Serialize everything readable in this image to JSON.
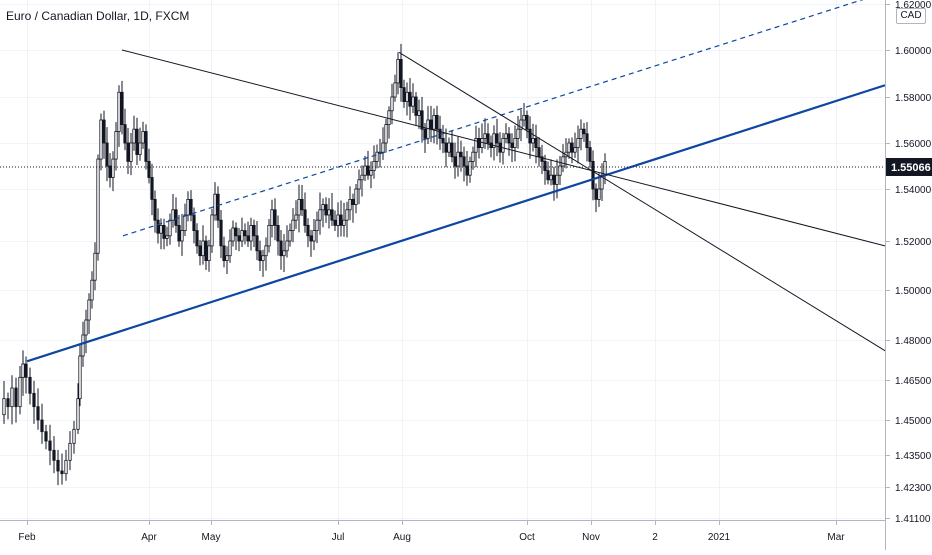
{
  "header": {
    "symbol_title": "Euro / Canadian Dollar, 1D, FXCM",
    "currency": "CAD"
  },
  "price_axis": {
    "ticks": [
      "1.62000",
      "1.60000",
      "1.58000",
      "1.56000",
      "1.54000",
      "1.52000",
      "1.50000",
      "1.48000",
      "1.46500",
      "1.45000",
      "1.43500",
      "1.42300",
      "1.41100"
    ],
    "current_price": "1.55066"
  },
  "time_axis": {
    "labels": [
      "Feb",
      "Apr",
      "May",
      "Jul",
      "Aug",
      "Oct",
      "Nov",
      "2",
      "2021",
      "Mar"
    ]
  },
  "colors": {
    "up_candle": "#ffffff",
    "down_candle": "#131722",
    "wick": "#131722",
    "trendline_blue": "#0d47a1",
    "channel_line": "#131722",
    "price_label_bg": "#131722",
    "grid": "#f0f3fa"
  },
  "chart_data": {
    "type": "candlestick",
    "symbol": "Euro / Canadian Dollar",
    "interval": "1D",
    "source": "FXCM",
    "quote_currency": "CAD",
    "y_ticks": [
      1.62,
      1.6,
      1.58,
      1.56,
      1.54,
      1.52,
      1.5,
      1.48,
      1.465,
      1.45,
      1.435,
      1.423,
      1.411
    ],
    "last_price": 1.55066,
    "x_labels": [
      "Feb",
      "Apr",
      "May",
      "Jul",
      "Aug",
      "Oct",
      "Nov",
      "2",
      "2021",
      "Mar"
    ],
    "price_path": [
      [
        0,
        1.452
      ],
      [
        4,
        1.458
      ],
      [
        8,
        1.455
      ],
      [
        12,
        1.462
      ],
      [
        16,
        1.455
      ],
      [
        20,
        1.466
      ],
      [
        23,
        1.471
      ],
      [
        26,
        1.466
      ],
      [
        30,
        1.46
      ],
      [
        34,
        1.455
      ],
      [
        38,
        1.45
      ],
      [
        42,
        1.445
      ],
      [
        46,
        1.441
      ],
      [
        50,
        1.437
      ],
      [
        54,
        1.433
      ],
      [
        58,
        1.429
      ],
      [
        62,
        1.428
      ],
      [
        66,
        1.433
      ],
      [
        70,
        1.44
      ],
      [
        74,
        1.446
      ],
      [
        78,
        1.458
      ],
      [
        80,
        1.474
      ],
      [
        83,
        1.482
      ],
      [
        86,
        1.488
      ],
      [
        89,
        1.496
      ],
      [
        92,
        1.504
      ],
      [
        95,
        1.515
      ],
      [
        98,
        1.553
      ],
      [
        101,
        1.57
      ],
      [
        104,
        1.56
      ],
      [
        107,
        1.55
      ],
      [
        110,
        1.545
      ],
      [
        113,
        1.553
      ],
      [
        116,
        1.565
      ],
      [
        119,
        1.582
      ],
      [
        122,
        1.568
      ],
      [
        125,
        1.56
      ],
      [
        128,
        1.552
      ],
      [
        131,
        1.56
      ],
      [
        134,
        1.566
      ],
      [
        137,
        1.555
      ],
      [
        140,
        1.56
      ],
      [
        143,
        1.565
      ],
      [
        146,
        1.552
      ],
      [
        149,
        1.545
      ],
      [
        152,
        1.536
      ],
      [
        155,
        1.528
      ],
      [
        158,
        1.523
      ],
      [
        161,
        1.526
      ],
      [
        164,
        1.521
      ],
      [
        167,
        1.522
      ],
      [
        170,
        1.528
      ],
      [
        173,
        1.532
      ],
      [
        176,
        1.526
      ],
      [
        179,
        1.52
      ],
      [
        182,
        1.524
      ],
      [
        185,
        1.53
      ],
      [
        188,
        1.536
      ],
      [
        191,
        1.53
      ],
      [
        194,
        1.524
      ],
      [
        197,
        1.518
      ],
      [
        200,
        1.514
      ],
      [
        203,
        1.52
      ],
      [
        206,
        1.512
      ],
      [
        209,
        1.518
      ],
      [
        212,
        1.53
      ],
      [
        215,
        1.538
      ],
      [
        218,
        1.528
      ],
      [
        221,
        1.518
      ],
      [
        224,
        1.512
      ],
      [
        227,
        1.514
      ],
      [
        230,
        1.52
      ],
      [
        233,
        1.525
      ],
      [
        236,
        1.522
      ],
      [
        239,
        1.52
      ],
      [
        242,
        1.524
      ],
      [
        245,
        1.522
      ],
      [
        248,
        1.52
      ],
      [
        251,
        1.526
      ],
      [
        254,
        1.522
      ],
      [
        257,
        1.516
      ],
      [
        260,
        1.512
      ],
      [
        263,
        1.514
      ],
      [
        266,
        1.518
      ],
      [
        269,
        1.526
      ],
      [
        272,
        1.532
      ],
      [
        275,
        1.526
      ],
      [
        278,
        1.52
      ],
      [
        281,
        1.514
      ],
      [
        284,
        1.516
      ],
      [
        287,
        1.52
      ],
      [
        290,
        1.524
      ],
      [
        293,
        1.528
      ],
      [
        296,
        1.53
      ],
      [
        299,
        1.536
      ],
      [
        302,
        1.532
      ],
      [
        305,
        1.526
      ],
      [
        308,
        1.522
      ],
      [
        311,
        1.52
      ],
      [
        314,
        1.524
      ],
      [
        317,
        1.528
      ],
      [
        320,
        1.532
      ],
      [
        323,
        1.534
      ],
      [
        326,
        1.53
      ],
      [
        329,
        1.532
      ],
      [
        332,
        1.528
      ],
      [
        335,
        1.526
      ],
      [
        338,
        1.53
      ],
      [
        341,
        1.526
      ],
      [
        344,
        1.528
      ],
      [
        347,
        1.532
      ],
      [
        350,
        1.536
      ],
      [
        353,
        1.534
      ],
      [
        356,
        1.54
      ],
      [
        359,
        1.544
      ],
      [
        362,
        1.546
      ],
      [
        365,
        1.55
      ],
      [
        368,
        1.546
      ],
      [
        371,
        1.548
      ],
      [
        374,
        1.552
      ],
      [
        377,
        1.556
      ],
      [
        380,
        1.556
      ],
      [
        383,
        1.56
      ],
      [
        386,
        1.568
      ],
      [
        389,
        1.574
      ],
      [
        392,
        1.58
      ],
      [
        395,
        1.586
      ],
      [
        398,
        1.596
      ],
      [
        401,
        1.584
      ],
      [
        404,
        1.578
      ],
      [
        407,
        1.582
      ],
      [
        410,
        1.576
      ],
      [
        413,
        1.58
      ],
      [
        416,
        1.572
      ],
      [
        419,
        1.574
      ],
      [
        422,
        1.566
      ],
      [
        425,
        1.562
      ],
      [
        428,
        1.57
      ],
      [
        431,
        1.566
      ],
      [
        434,
        1.572
      ],
      [
        437,
        1.566
      ],
      [
        440,
        1.562
      ],
      [
        443,
        1.56
      ],
      [
        446,
        1.556
      ],
      [
        449,
        1.56
      ],
      [
        452,
        1.554
      ],
      [
        455,
        1.55
      ],
      [
        458,
        1.556
      ],
      [
        461,
        1.554
      ],
      [
        464,
        1.55
      ],
      [
        467,
        1.546
      ],
      [
        470,
        1.552
      ],
      [
        473,
        1.556
      ],
      [
        476,
        1.562
      ],
      [
        479,
        1.558
      ],
      [
        482,
        1.562
      ],
      [
        485,
        1.564
      ],
      [
        488,
        1.56
      ],
      [
        491,
        1.558
      ],
      [
        494,
        1.564
      ],
      [
        497,
        1.56
      ],
      [
        500,
        1.556
      ],
      [
        503,
        1.562
      ],
      [
        506,
        1.564
      ],
      [
        509,
        1.56
      ],
      [
        512,
        1.558
      ],
      [
        515,
        1.562
      ],
      [
        518,
        1.566
      ],
      [
        521,
        1.57
      ],
      [
        524,
        1.572
      ],
      [
        527,
        1.566
      ],
      [
        530,
        1.56
      ],
      [
        533,
        1.562
      ],
      [
        536,
        1.558
      ],
      [
        539,
        1.554
      ],
      [
        542,
        1.552
      ],
      [
        545,
        1.548
      ],
      [
        548,
        1.544
      ],
      [
        551,
        1.546
      ],
      [
        554,
        1.542
      ],
      [
        557,
        1.546
      ],
      [
        560,
        1.55
      ],
      [
        563,
        1.554
      ],
      [
        566,
        1.556
      ],
      [
        569,
        1.56
      ],
      [
        572,
        1.556
      ],
      [
        575,
        1.558
      ],
      [
        578,
        1.562
      ],
      [
        581,
        1.566
      ],
      [
        584,
        1.564
      ],
      [
        587,
        1.558
      ],
      [
        590,
        1.552
      ],
      [
        593,
        1.54
      ],
      [
        596,
        1.536
      ],
      [
        599,
        1.54
      ],
      [
        602,
        1.546
      ],
      [
        605,
        1.552
      ]
    ],
    "drawings": [
      {
        "kind": "trendline",
        "color": "blue",
        "from": [
          27,
          1.472
        ],
        "to": [
          885,
          1.585
        ]
      },
      {
        "kind": "trendline_dashed",
        "color": "blue",
        "from": [
          123,
          1.522
        ],
        "to": [
          885,
          1.625
        ]
      },
      {
        "kind": "channel_line",
        "from": [
          122,
          1.6
        ],
        "to": [
          885,
          1.518
        ]
      },
      {
        "kind": "channel_line",
        "from": [
          399,
          1.599
        ],
        "to": [
          885,
          1.476
        ]
      }
    ]
  }
}
